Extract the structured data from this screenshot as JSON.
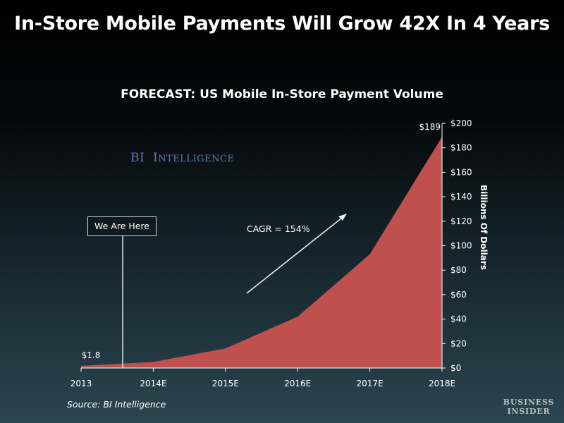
{
  "header": {
    "title": "In-Store Mobile Payments Will Grow 42X In 4 Years"
  },
  "watermark": {
    "first": "BI",
    "second_initial": "I",
    "second_rest": "NTELLIGENCE"
  },
  "annotations": {
    "here_label": "We Are Here",
    "cagr_label": "CAGR = 154%"
  },
  "footer": {
    "source": "Source: BI Intelligence",
    "brand_line1": "BUSINESS",
    "brand_line2": "INSIDER"
  },
  "colors": {
    "area_fill": "#c0504d",
    "axis": "#ffffff",
    "watermark": "#5a7fb5"
  },
  "chart_data": {
    "type": "area",
    "title": "FORECAST: US Mobile In-Store Payment Volume",
    "xlabel": "",
    "ylabel": "Billions Of Dollars",
    "y_axis_side": "right",
    "y_tick_format": "$",
    "categories": [
      "2013",
      "2014E",
      "2015E",
      "2016E",
      "2017E",
      "2018E"
    ],
    "series": [
      {
        "values": [
          1.8,
          5,
          16,
          42,
          93,
          189
        ]
      }
    ],
    "data_labels": [
      {
        "index": 0,
        "text": "$1.8"
      },
      {
        "index": 5,
        "text": "$189"
      }
    ],
    "ylim": [
      0,
      200
    ],
    "y_ticks": [
      0,
      20,
      40,
      60,
      80,
      100,
      120,
      140,
      160,
      180,
      200
    ],
    "grid": false,
    "legend": "none"
  }
}
